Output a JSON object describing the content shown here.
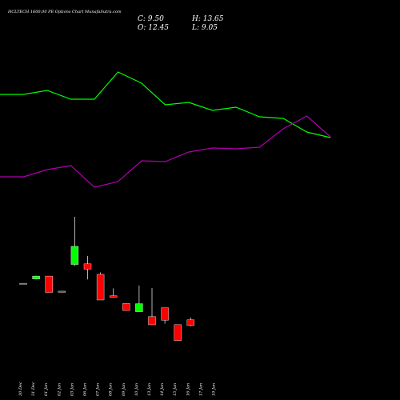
{
  "header": {
    "title": "HCLTECH 1600.00  PE Options  Chart MunafaSutra.com",
    "close": "C: 9.50",
    "open": "O: 12.45",
    "high": "H: 13.65",
    "low": "L: 9.05"
  },
  "colors": {
    "background": "#000000",
    "up": "#00ff00",
    "down": "#ff0000",
    "green_line": "#00ff00",
    "purple_line": "#b000b0",
    "wick": "#ffffff"
  },
  "chart_data": {
    "type": "candlestick",
    "title": "HCLTECH 1600.00  PE Options  Chart MunafaSutra.com",
    "categories": [
      "30 Dec",
      "31 Dec",
      "01 Jan",
      "02 Jan",
      "03 Jan",
      "06 Jan",
      "07 Jan",
      "08 Jan",
      "09 Jan",
      "10 Jan",
      "13 Jan",
      "14 Jan",
      "15 Jan",
      "16 Jan",
      "17 Jan",
      "19 Jan"
    ],
    "candles": [
      {
        "date": "30 Dec",
        "open": 31.25,
        "high": 31.25,
        "low": 31.05,
        "close": 31.05
      },
      {
        "date": "31 Dec",
        "open": 33.45,
        "high": 35.2,
        "low": 33.25,
        "close": 34.95
      },
      {
        "date": "01 Jan",
        "open": 34.95,
        "high": 34.95,
        "low": 26.55,
        "close": 26.55
      },
      {
        "date": "02 Jan",
        "open": 27.2,
        "high": 27.25,
        "low": 26.6,
        "close": 26.6
      },
      {
        "date": "03 Jan",
        "open": 40.95,
        "high": 65.45,
        "low": 40.2,
        "close": 50.25
      },
      {
        "date": "06 Jan",
        "open": 41.25,
        "high": 45.35,
        "low": 33.25,
        "close": 38.55
      },
      {
        "date": "07 Jan",
        "open": 35.85,
        "high": 36.85,
        "low": 22.65,
        "close": 22.65
      },
      {
        "date": "08 Jan",
        "open": 24.8,
        "high": 28.65,
        "low": 24.05,
        "close": 24.05
      },
      {
        "date": "09 Jan",
        "open": 20.85,
        "high": 20.85,
        "low": 17.25,
        "close": 17.25
      },
      {
        "date": "10 Jan",
        "open": 16.65,
        "high": 30.1,
        "low": 16.65,
        "close": 20.75
      },
      {
        "date": "13 Jan",
        "open": 14.1,
        "high": 28.8,
        "low": 9.9,
        "close": 9.9
      },
      {
        "date": "14 Jan",
        "open": 18.65,
        "high": 18.65,
        "low": 10.45,
        "close": 12.25
      },
      {
        "date": "15 Jan",
        "open": 9.95,
        "high": 9.95,
        "low": 1.8,
        "close": 1.8
      },
      {
        "date": "16 Jan",
        "open": 12.45,
        "high": 13.65,
        "low": 9.05,
        "close": 9.5
      }
    ],
    "lines": [
      {
        "color": "#00ff00",
        "values": [
          118,
          118,
          113,
          124,
          124,
          90,
          104,
          131,
          128,
          138,
          134,
          146,
          148,
          165,
          172
        ]
      },
      {
        "color": "#b000b0",
        "values": [
          221,
          221,
          212,
          207,
          234,
          227,
          201,
          202,
          190,
          185,
          186,
          184,
          161,
          145,
          171
        ]
      }
    ],
    "ylim": [
      0,
      70
    ]
  }
}
